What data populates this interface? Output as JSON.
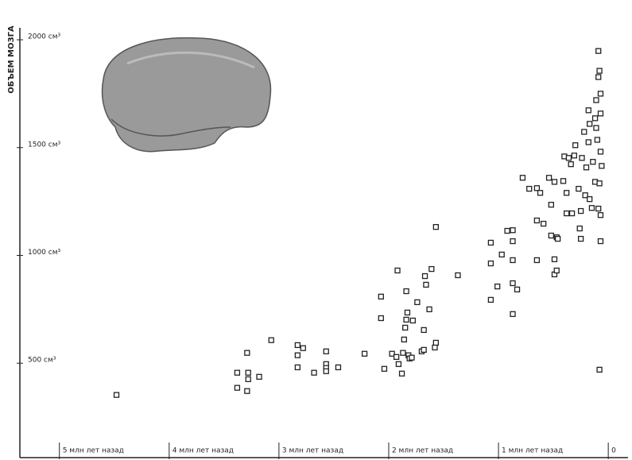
{
  "chart_data": {
    "type": "scatter",
    "y_label": "ОБЪЕМ МОЗГА",
    "xlim": [
      5.36,
      -0.18
    ],
    "ylim": [
      66,
      2037
    ],
    "xticks": [
      {
        "value": 5,
        "label": "5 млн лет назад"
      },
      {
        "value": 4,
        "label": "4 млн лет назад"
      },
      {
        "value": 3,
        "label": "3 млн лет назад"
      },
      {
        "value": 2,
        "label": "2 млн лет назад"
      },
      {
        "value": 1,
        "label": "1 млн лет назад"
      },
      0
    ],
    "yticks": [
      {
        "value": 500,
        "label": "500 см³"
      },
      {
        "value": 1000,
        "label": "1000 см³"
      },
      {
        "value": 1500,
        "label": "1500 см³"
      },
      {
        "value": 2000,
        "label": "2000 см³"
      }
    ],
    "grid": false,
    "marker_color": "#222222",
    "x": [
      4.48,
      3.38,
      3.38,
      3.29,
      3.28,
      3.28,
      3.29,
      3.18,
      3.07,
      2.83,
      2.78,
      2.83,
      2.83,
      2.68,
      2.57,
      2.57,
      2.57,
      2.57,
      2.46,
      2.22,
      2.07,
      2.07,
      2.04,
      1.97,
      1.93,
      1.91,
      1.92,
      1.88,
      1.87,
      1.86,
      1.85,
      1.84,
      1.84,
      1.83,
      1.82,
      1.81,
      1.79,
      1.78,
      1.74,
      1.7,
      1.68,
      1.68,
      1.67,
      1.66,
      1.63,
      1.61,
      1.58,
      1.57,
      1.57,
      1.37,
      1.07,
      1.07,
      1.07,
      1.01,
      0.97,
      0.92,
      0.87,
      0.87,
      0.87,
      0.87,
      0.87,
      0.83,
      0.78,
      0.72,
      0.65,
      0.65,
      0.65,
      0.62,
      0.59,
      0.54,
      0.52,
      0.52,
      0.49,
      0.49,
      0.49,
      0.47,
      0.47,
      0.46,
      0.41,
      0.4,
      0.38,
      0.38,
      0.36,
      0.34,
      0.33,
      0.31,
      0.3,
      0.27,
      0.26,
      0.25,
      0.25,
      0.24,
      0.22,
      0.21,
      0.2,
      0.18,
      0.18,
      0.17,
      0.17,
      0.15,
      0.14,
      0.12,
      0.12,
      0.11,
      0.11,
      0.1,
      0.09,
      0.09,
      0.09,
      0.08,
      0.08,
      0.07,
      0.07,
      0.07,
      0.07,
      0.07,
      0.08,
      0.06
    ],
    "y": [
      353,
      456,
      386,
      548,
      456,
      426,
      371,
      437,
      607,
      584,
      570,
      537,
      481,
      456,
      555,
      496,
      478,
      463,
      481,
      544,
      809,
      709,
      474,
      544,
      529,
      496,
      930,
      452,
      548,
      610,
      665,
      702,
      834,
      735,
      537,
      522,
      526,
      698,
      783,
      555,
      654,
      562,
      904,
      864,
      750,
      937,
      573,
      595,
      1132,
      908,
      1059,
      963,
      794,
      856,
      1004,
      1114,
      1117,
      1066,
      978,
      871,
      728,
      842,
      1360,
      1309,
      1312,
      1162,
      978,
      1290,
      1147,
      1360,
      1235,
      1092,
      1341,
      982,
      912,
      1084,
      930,
      1077,
      1345,
      1459,
      1290,
      1195,
      1452,
      1423,
      1195,
      1463,
      1511,
      1309,
      1125,
      1077,
      1206,
      1452,
      1573,
      1279,
      1408,
      1673,
      1525,
      1261,
      1610,
      1220,
      1434,
      1341,
      1636,
      1591,
      1720,
      1536,
      1217,
      1827,
      1948,
      1856,
      1334,
      1481,
      1187,
      1658,
      1750,
      1066,
      470,
      1415
    ]
  }
}
